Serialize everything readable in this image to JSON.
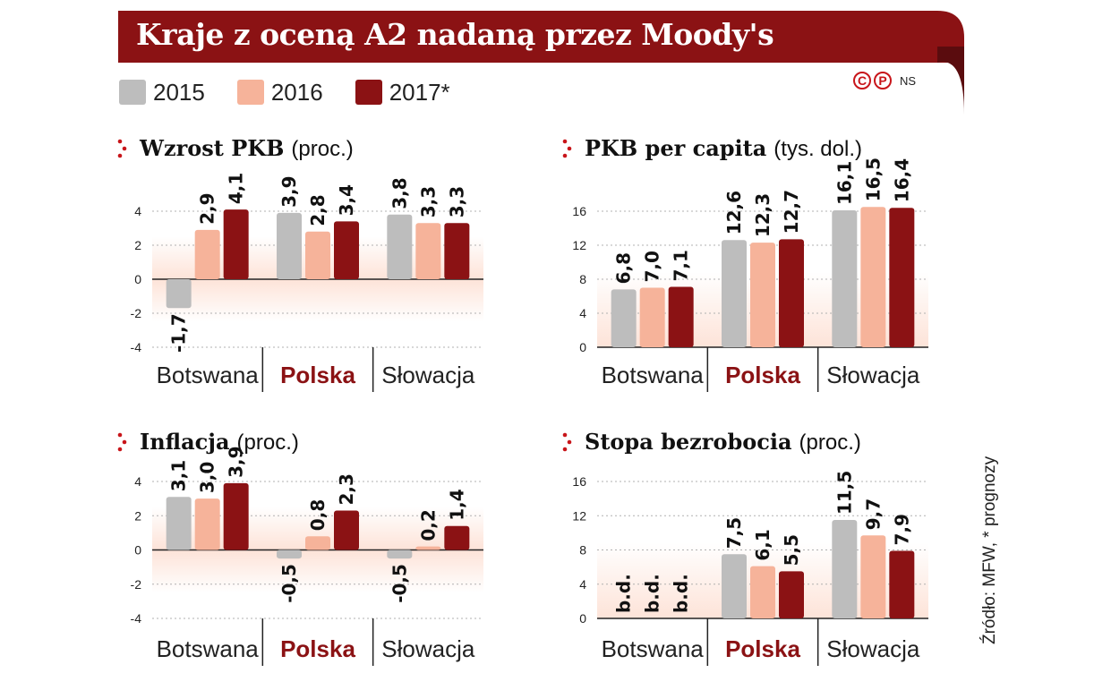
{
  "header": {
    "title": "Kraje z oceną A2 nadaną przez Moody's",
    "banner_color": "#8b1214",
    "tab_color": "#5a0c0e"
  },
  "legend": {
    "items": [
      {
        "label": "2015",
        "color": "#bdbdbd"
      },
      {
        "label": "2016",
        "color": "#f6b39a"
      },
      {
        "label": "2017*",
        "color": "#8b1214"
      }
    ]
  },
  "copyright": {
    "icons": [
      "copyright-icon",
      "press-icon"
    ],
    "author": "NS"
  },
  "source_note": "Źródło: MFW, * prognozy",
  "colors": {
    "2015": "#bdbdbd",
    "2016": "#f6b39a",
    "2017": "#8b1214",
    "highlight_text": "#8b1214",
    "marker": "#c8151a"
  },
  "chart_data": [
    {
      "type": "bar",
      "title": "Wzrost PKB",
      "unit": "(proc.)",
      "categories": [
        "Botswana",
        "Polska",
        "Słowacja"
      ],
      "highlight_category": "Polska",
      "ylim": [
        -4,
        4
      ],
      "yticks": [
        4,
        2,
        0,
        -2,
        -4
      ],
      "series": [
        {
          "name": "2015",
          "values": [
            -1.7,
            3.9,
            3.8
          ],
          "labels": [
            "-1,7",
            "3,9",
            "3,8"
          ]
        },
        {
          "name": "2016",
          "values": [
            2.9,
            2.8,
            3.3
          ],
          "labels": [
            "2,9",
            "2,8",
            "3,3"
          ]
        },
        {
          "name": "2017*",
          "values": [
            4.1,
            3.4,
            3.3
          ],
          "labels": [
            "4,1",
            "3,4",
            "3,3"
          ]
        }
      ]
    },
    {
      "type": "bar",
      "title": "PKB per capita",
      "unit": "(tys. dol.)",
      "categories": [
        "Botswana",
        "Polska",
        "Słowacja"
      ],
      "highlight_category": "Polska",
      "ylim": [
        0,
        16
      ],
      "yticks": [
        16,
        12,
        8,
        4,
        0
      ],
      "series": [
        {
          "name": "2015",
          "values": [
            6.8,
            12.6,
            16.1
          ],
          "labels": [
            "6,8",
            "12,6",
            "16,1"
          ]
        },
        {
          "name": "2016",
          "values": [
            7.0,
            12.3,
            16.5
          ],
          "labels": [
            "7,0",
            "12,3",
            "16,5"
          ]
        },
        {
          "name": "2017*",
          "values": [
            7.1,
            12.7,
            16.4
          ],
          "labels": [
            "7,1",
            "12,7",
            "16,4"
          ]
        }
      ]
    },
    {
      "type": "bar",
      "title": "Inflacja",
      "unit": "(proc.)",
      "categories": [
        "Botswana",
        "Polska",
        "Słowacja"
      ],
      "highlight_category": "Polska",
      "ylim": [
        -4,
        4
      ],
      "yticks": [
        4,
        2,
        0,
        -2,
        -4
      ],
      "series": [
        {
          "name": "2015",
          "values": [
            3.1,
            -0.5,
            -0.5
          ],
          "labels": [
            "3,1",
            "-0,5",
            "-0,5"
          ]
        },
        {
          "name": "2016",
          "values": [
            3.0,
            0.8,
            0.2
          ],
          "labels": [
            "3,0",
            "0,8",
            "0,2"
          ]
        },
        {
          "name": "2017*",
          "values": [
            3.9,
            2.3,
            1.4
          ],
          "labels": [
            "3,9",
            "2,3",
            "1,4"
          ]
        }
      ]
    },
    {
      "type": "bar",
      "title": "Stopa bezrobocia",
      "unit": "(proc.)",
      "categories": [
        "Botswana",
        "Polska",
        "Słowacja"
      ],
      "highlight_category": "Polska",
      "ylim": [
        0,
        16
      ],
      "yticks": [
        16,
        12,
        8,
        4,
        0
      ],
      "series": [
        {
          "name": "2015",
          "values": [
            null,
            7.5,
            11.5
          ],
          "labels": [
            "b.d.",
            "7,5",
            "11,5"
          ]
        },
        {
          "name": "2016",
          "values": [
            null,
            6.1,
            9.7
          ],
          "labels": [
            "b.d.",
            "6,1",
            "9,7"
          ]
        },
        {
          "name": "2017*",
          "values": [
            null,
            5.5,
            7.9
          ],
          "labels": [
            "b.d.",
            "5,5",
            "7,9"
          ]
        }
      ]
    }
  ]
}
